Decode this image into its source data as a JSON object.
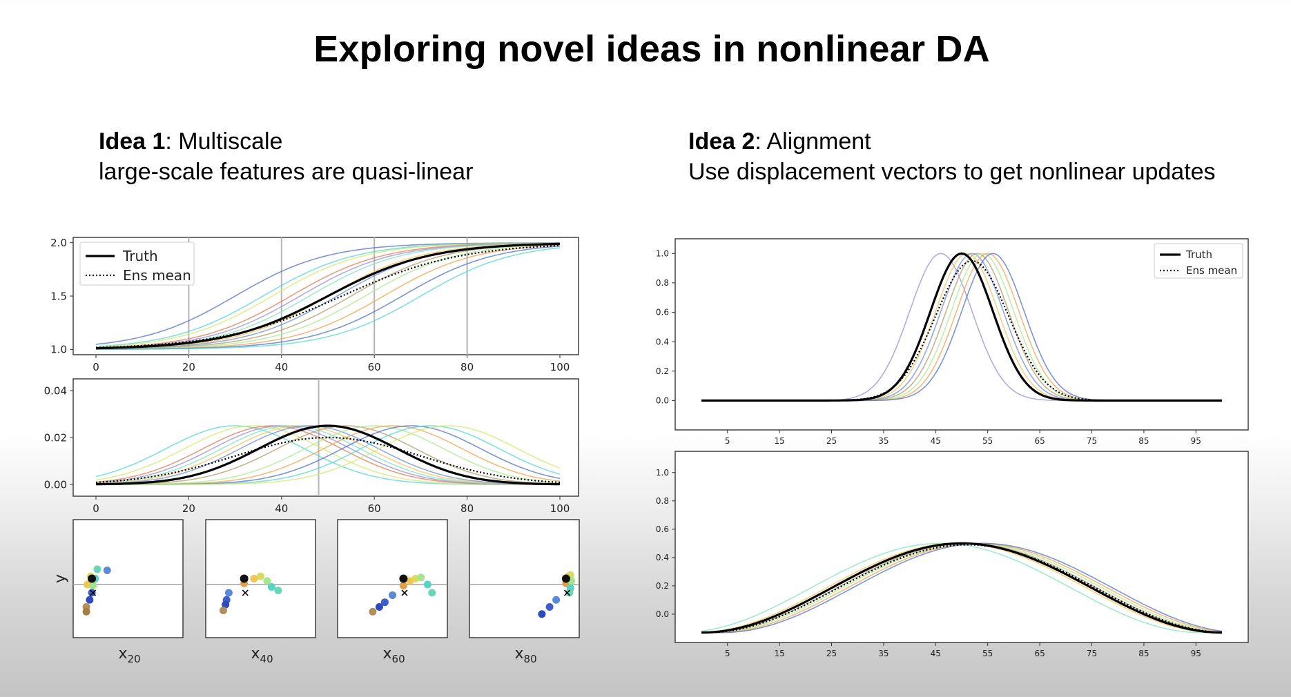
{
  "title": "Exploring novel ideas in nonlinear DA",
  "idea1": {
    "label": "Idea 1",
    "name": ": Multiscale",
    "subtitle": "large-scale features are quasi-linear"
  },
  "idea2": {
    "label": "Idea 2",
    "name": ": Alignment",
    "subtitle": "Use displacement vectors to get nonlinear updates"
  },
  "colors": {
    "truth": "#000000",
    "ens_palette": [
      "#56d6d1",
      "#7fe3c0",
      "#a9ea8f",
      "#d6e86b",
      "#f2c45a",
      "#f0a34e",
      "#e07c52",
      "#6b8ed9",
      "#4f6fc9",
      "#9a8fd1",
      "#b09a6a"
    ]
  },
  "chart_data": [
    {
      "id": "left-top",
      "type": "line",
      "xlim": [
        0,
        100
      ],
      "ylim": [
        0.95,
        2.05
      ],
      "xticks": [
        0,
        20,
        40,
        60,
        80,
        100
      ],
      "yticks": [
        "1.0",
        "1.5",
        "2.0"
      ],
      "xtick_labels": [
        "0",
        "20",
        "40",
        "60",
        "80",
        "100"
      ],
      "vlines": [
        20,
        40,
        60,
        80
      ],
      "legend": {
        "position": "top-left",
        "entries": [
          "Truth",
          "Ens mean"
        ]
      },
      "series": [
        {
          "name": "Truth",
          "style": "solid",
          "model": "sigmoid",
          "center": 50,
          "width": 11,
          "low": 1.0,
          "high": 2.0
        },
        {
          "name": "Ens mean",
          "style": "dotted",
          "model": "sigmoid",
          "center": 53,
          "width": 13,
          "low": 1.0,
          "high": 2.0
        }
      ],
      "ensemble": {
        "model": "sigmoid",
        "centers": [
          30,
          36,
          38,
          42,
          44,
          46,
          50,
          52,
          55,
          58,
          62,
          66,
          70
        ],
        "width": 10,
        "low": 1.0,
        "high": 2.0
      }
    },
    {
      "id": "left-middle",
      "type": "line",
      "xlim": [
        0,
        100
      ],
      "ylim": [
        -0.005,
        0.045
      ],
      "xticks": [
        0,
        20,
        40,
        60,
        80,
        100
      ],
      "yticks": [
        "0.00",
        "0.02",
        "0.04"
      ],
      "xtick_labels": [
        "0",
        "20",
        "40",
        "60",
        "80",
        "100"
      ],
      "vlines": [
        48
      ],
      "series": [
        {
          "name": "Truth",
          "style": "solid",
          "model": "gauss",
          "center": 50,
          "width": 15,
          "amp": 0.025
        },
        {
          "name": "Ens mean",
          "style": "dotted",
          "model": "gauss",
          "center": 50,
          "width": 20,
          "amp": 0.02
        }
      ],
      "ensemble": {
        "model": "gauss",
        "centers": [
          30,
          34,
          38,
          40,
          42,
          44,
          46,
          54,
          60,
          64,
          68,
          72,
          76
        ],
        "width": 15,
        "amp": 0.025
      }
    },
    {
      "id": "left-scatter",
      "type": "scatter",
      "ylabel": "y",
      "panels": [
        {
          "xlabel": "x",
          "sub": "20"
        },
        {
          "xlabel": "x",
          "sub": "40"
        },
        {
          "xlabel": "x",
          "sub": "60"
        },
        {
          "xlabel": "x",
          "sub": "80"
        }
      ],
      "hline": 0.55
    },
    {
      "id": "right-top",
      "type": "line",
      "xlim": [
        0,
        100
      ],
      "ylim": [
        -0.2,
        1.1
      ],
      "xticks": [
        5,
        15,
        25,
        35,
        45,
        55,
        65,
        75,
        85,
        95
      ],
      "yticks": [
        "0.0",
        "0.2",
        "0.4",
        "0.6",
        "0.8",
        "1.0"
      ],
      "xtick_labels": [
        "5",
        "15",
        "25",
        "35",
        "45",
        "55",
        "65",
        "75",
        "85",
        "95"
      ],
      "legend": {
        "position": "top-right",
        "entries": [
          "Truth",
          "Ens mean"
        ]
      },
      "series": [
        {
          "name": "Truth",
          "style": "solid",
          "model": "gauss",
          "center": 50,
          "width": 6,
          "amp": 1.0
        },
        {
          "name": "Ens mean",
          "style": "dotted",
          "model": "gauss",
          "center": 52,
          "width": 7,
          "amp": 0.95
        }
      ],
      "ensemble": {
        "model": "gauss",
        "centers": [
          46,
          50,
          51,
          52,
          53,
          54,
          55,
          56
        ],
        "width": 6,
        "amp": 1.0
      }
    },
    {
      "id": "right-bottom",
      "type": "line",
      "xlim": [
        0,
        100
      ],
      "ylim": [
        -0.2,
        1.15
      ],
      "xticks": [
        5,
        15,
        25,
        35,
        45,
        55,
        65,
        75,
        85,
        95
      ],
      "yticks": [
        "0.0",
        "0.2",
        "0.4",
        "0.6",
        "0.8",
        "1.0"
      ],
      "xtick_labels": [
        "5",
        "15",
        "25",
        "35",
        "45",
        "55",
        "65",
        "75",
        "85",
        "95"
      ],
      "series": [
        {
          "name": "Truth",
          "style": "solid",
          "model": "cos",
          "center": 50,
          "amp": 0.5,
          "base": -0.13
        },
        {
          "name": "Ens mean",
          "style": "dotted",
          "model": "cos",
          "center": 51,
          "amp": 0.49,
          "base": -0.13
        }
      ],
      "ensemble": {
        "model": "cos",
        "centers": [
          46,
          49,
          50,
          51,
          52,
          53,
          54
        ],
        "amp": 0.5,
        "base": -0.13
      }
    }
  ]
}
